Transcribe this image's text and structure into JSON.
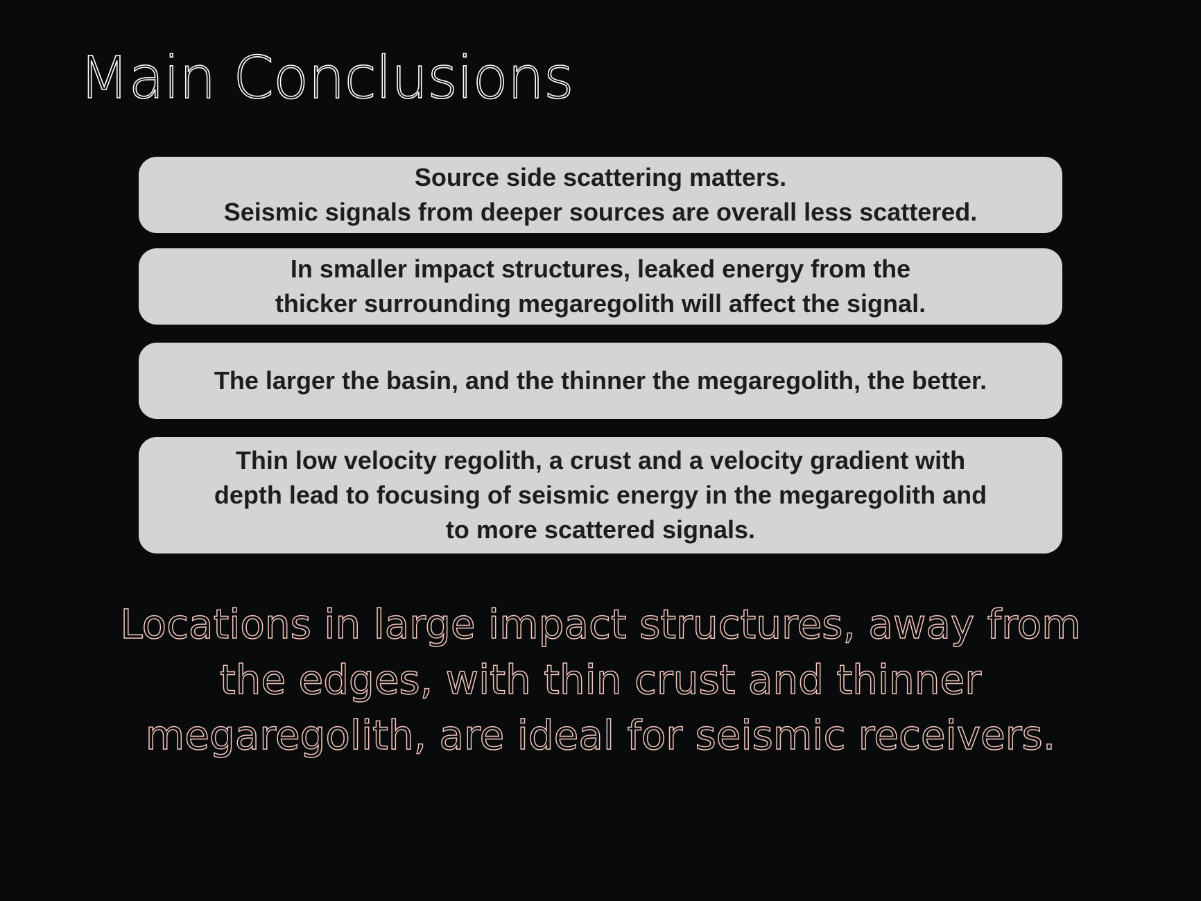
{
  "title": "Main Conclusions",
  "conclusions": [
    {
      "text": "Source side scattering matters.\nSeismic signals from deeper sources are overall less scattered."
    },
    {
      "text": "In smaller impact structures, leaked energy from the\nthicker surrounding megaregolith will affect the signal."
    },
    {
      "text": "The larger the basin, and the thinner the megaregolith, the better."
    },
    {
      "text": "Thin low velocity regolith, a crust and a velocity gradient with\ndepth lead to focusing of seismic energy in the megaregolith and\nto more scattered signals."
    }
  ],
  "final_statement": "Locations in large impact structures, away from\nthe edges, with thin crust and thinner\nmegaregolith, are ideal for seismic receivers.",
  "colors": {
    "background": "#090a0c",
    "box_fill": "#d3d4d6",
    "box_text": "#1d1d1f",
    "title_outline": "#ffffff",
    "statement_outline": "#f2c7bd"
  }
}
